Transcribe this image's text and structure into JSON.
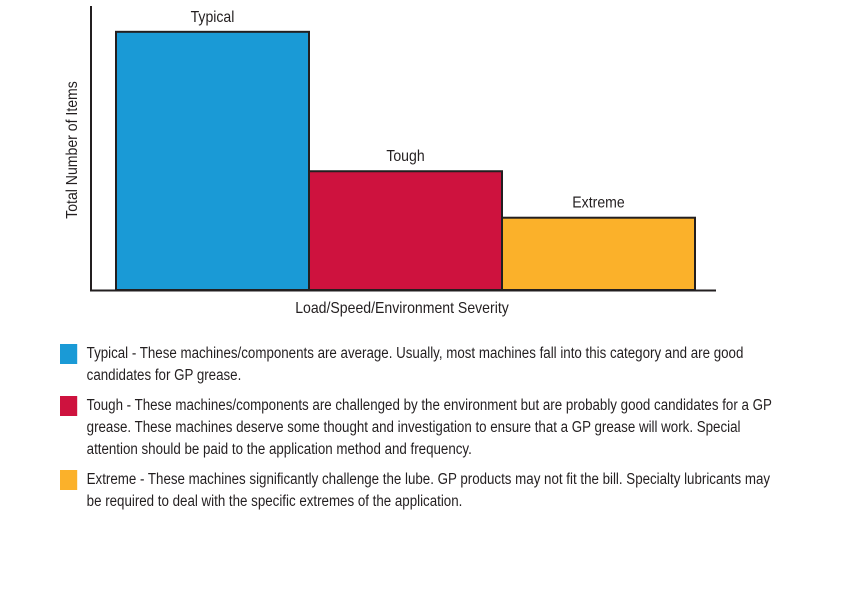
{
  "chart_data": {
    "type": "bar",
    "categories": [
      "Typical",
      "Tough",
      "Extreme"
    ],
    "values": [
      100,
      46,
      28
    ],
    "xlabel": "Load/Speed/Environment Severity",
    "ylabel": "Total Number of Items",
    "ylim": [
      0,
      110
    ],
    "grid": false,
    "colors": [
      "#1a9ad6",
      "#ce123e",
      "#fbb12a"
    ]
  },
  "legend": [
    {
      "color": "#1a9ad6",
      "text": "Typical - These machines/components are average. Usually, most machines fall into this category and are good candidates for GP grease."
    },
    {
      "color": "#ce123e",
      "text": "Tough - These machines/components are challenged by the environment but are probably good candidates for a GP grease. These machines deserve some thought and investigation to ensure that a GP grease will work. Special attention should be paid to the application method and frequency."
    },
    {
      "color": "#fbb12a",
      "text": "Extreme - These machines significantly challenge the lube. GP products may not fit the bill. Specialty lubricants may be required to deal with the specific extremes of the application."
    }
  ]
}
